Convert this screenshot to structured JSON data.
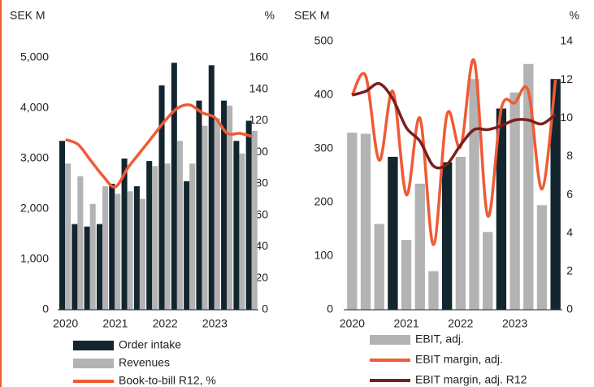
{
  "chart_data": [
    {
      "type": "bar_line",
      "y_label": "SEK M",
      "y2_label": "%",
      "categories": [
        "2020",
        null,
        null,
        null,
        "2021",
        null,
        null,
        null,
        "2022",
        null,
        null,
        null,
        "2023",
        null,
        null,
        null
      ],
      "series": [
        {
          "name": "Order intake",
          "kind": "bar",
          "color": "#13252f",
          "values": [
            3350,
            1700,
            1650,
            1700,
            2500,
            3000,
            2450,
            2950,
            4450,
            4900,
            2550,
            4150,
            4850,
            4150,
            3350,
            3750
          ]
        },
        {
          "name": "Revenues",
          "kind": "bar",
          "color": "#b3b3b3",
          "values": [
            2900,
            2650,
            2100,
            2450,
            2300,
            2350,
            2200,
            2850,
            2900,
            3350,
            2900,
            3650,
            3800,
            4050,
            3100,
            3550
          ]
        },
        {
          "name": "Book-to-bill R12, %",
          "kind": "line",
          "axis": "y2",
          "color": "#f05a35",
          "values": [
            108,
            105,
            95,
            85,
            78,
            90,
            100,
            110,
            120,
            128,
            130,
            125,
            122,
            112,
            112,
            110
          ]
        }
      ],
      "ylim": [
        0,
        5000
      ],
      "yticks": [
        0,
        {
          "value": 1000,
          "label": "1,000"
        },
        {
          "value": 2000,
          "label": "2,000"
        },
        {
          "value": 3000,
          "label": "3,000"
        },
        {
          "value": 4000,
          "label": "4,000"
        },
        {
          "value": 5000,
          "label": "5,000"
        }
      ],
      "y2lim": [
        0,
        160
      ],
      "y2ticks": [
        0,
        20,
        40,
        60,
        80,
        100,
        120,
        140,
        160
      ]
    },
    {
      "type": "bar_line",
      "y_label": "SEK M",
      "y2_label": "%",
      "categories": [
        "2020",
        null,
        null,
        null,
        "2021",
        null,
        null,
        null,
        "2022",
        null,
        null,
        null,
        "2023",
        null,
        null,
        null
      ],
      "series": [
        {
          "name": "EBIT, adj.",
          "kind": "bar",
          "color": "#b3b3b3",
          "colors": [
            "#b3b3b3",
            "#b3b3b3",
            "#b3b3b3",
            "#13252f",
            "#b3b3b3",
            "#b3b3b3",
            "#b3b3b3",
            "#13252f",
            "#b3b3b3",
            "#b3b3b3",
            "#b3b3b3",
            "#13252f",
            "#b3b3b3",
            "#b3b3b3",
            "#b3b3b3",
            "#13252f"
          ],
          "values": [
            330,
            328,
            160,
            285,
            130,
            235,
            72,
            275,
            285,
            430,
            145,
            375,
            405,
            458,
            195,
            430
          ]
        },
        {
          "name": "EBIT margin, adj.",
          "kind": "line",
          "axis": "y2",
          "color": "#f05a35",
          "values": [
            11.2,
            12.2,
            7.8,
            11.4,
            6.0,
            10.0,
            3.4,
            10.2,
            8.5,
            13.0,
            4.9,
            10.5,
            10.8,
            11.4,
            6.3,
            12.0
          ]
        },
        {
          "name": "EBIT margin, adj. R12",
          "kind": "line",
          "axis": "y2",
          "color": "#7a1f1f",
          "values": [
            11.2,
            11.4,
            11.8,
            11.0,
            9.5,
            8.8,
            7.5,
            7.6,
            8.6,
            9.4,
            9.4,
            9.6,
            9.9,
            9.9,
            9.7,
            10.2
          ]
        }
      ],
      "ylim": [
        0,
        500
      ],
      "yticks": [
        0,
        100,
        200,
        300,
        400,
        500
      ],
      "y2lim": [
        0,
        14
      ],
      "y2ticks": [
        0,
        2,
        4,
        6,
        8,
        10,
        12,
        14
      ]
    }
  ]
}
